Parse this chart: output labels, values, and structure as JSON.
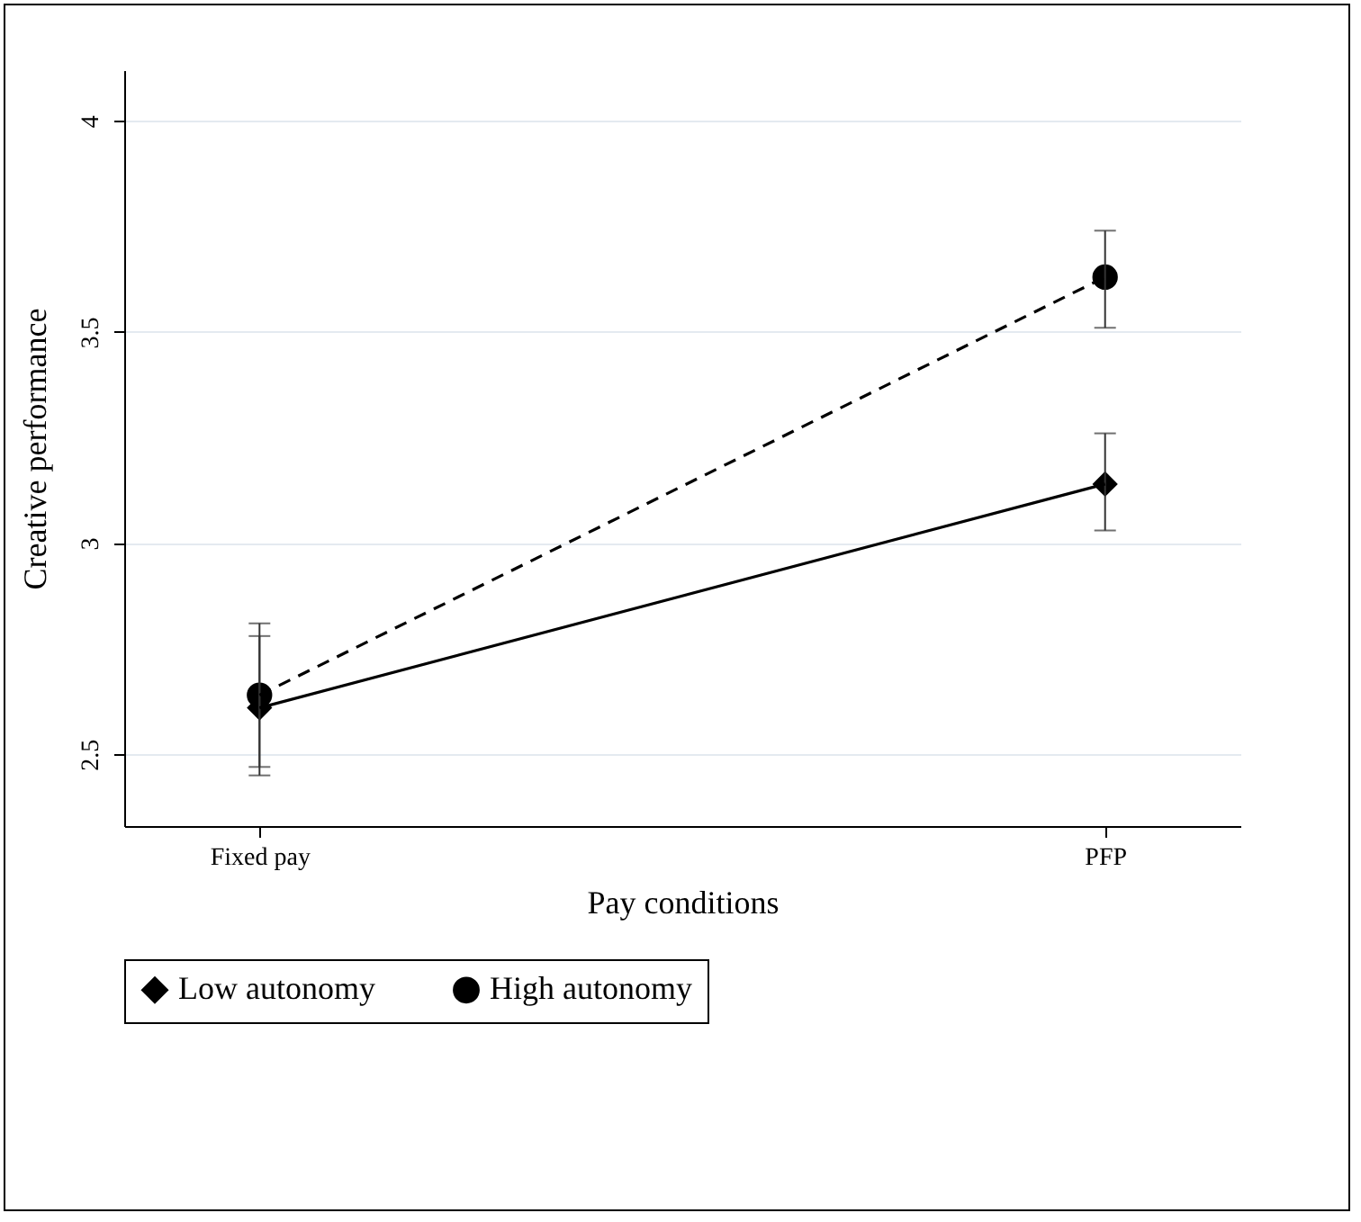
{
  "chart_data": {
    "type": "line",
    "xlabel": "Pay conditions",
    "ylabel": "Creative performance",
    "categories": [
      "Fixed pay",
      "PFP"
    ],
    "series": [
      {
        "name": "Low autonomy",
        "color": "#000000",
        "values": [
          2.61,
          3.14
        ],
        "errors": [
          [
            2.45,
            2.78
          ],
          [
            3.03,
            3.26
          ]
        ],
        "marker": "diamond",
        "line_style": "solid"
      },
      {
        "name": "High autonomy",
        "color": "#000000",
        "values": [
          2.64,
          3.63
        ],
        "errors": [
          [
            2.47,
            2.81
          ],
          [
            3.51,
            3.74
          ]
        ],
        "marker": "circle",
        "line_style": "dashed"
      }
    ],
    "ylim": [
      2.33,
      4.12
    ],
    "yticks": [
      2.5,
      3,
      3.5,
      4
    ],
    "grid": "y",
    "legend": "bottom"
  }
}
